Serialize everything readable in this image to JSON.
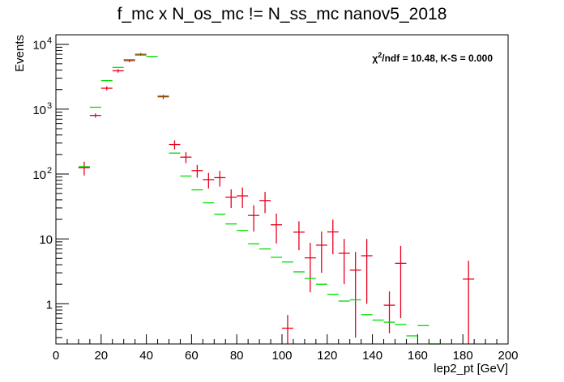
{
  "chart_data": {
    "type": "scatter",
    "title": "f_mc x N_os_mc != N_ss_mc nanov5_2018",
    "xlabel": "lep2_pt [GeV]",
    "ylabel": "Events",
    "xlim": [
      0,
      200
    ],
    "ylim": [
      0.24,
      14000
    ],
    "yscale": "log",
    "x_ticks": [
      "0",
      "20",
      "40",
      "60",
      "80",
      "100",
      "120",
      "140",
      "160",
      "180",
      "200"
    ],
    "y_ticks": [
      {
        "value": 1,
        "label": "1"
      },
      {
        "value": 10,
        "label": "10"
      },
      {
        "value": 100,
        "label": "10",
        "exp": "2"
      },
      {
        "value": 1000,
        "label": "10",
        "exp": "3"
      },
      {
        "value": 10000,
        "label": "10",
        "exp": "4"
      }
    ],
    "annotation": {
      "chi_prefix": "χ",
      "chi_sup": "2",
      "chi_rest": "/ndf = 10.48,   K-S = 0.000"
    },
    "bin_half_width": 2.5,
    "colors": {
      "red_series": "#e8001c",
      "green_series": "#00dd00"
    },
    "series": [
      {
        "color": "red",
        "points": [
          [
            12.5,
            125,
            30
          ],
          [
            17.5,
            800,
            60
          ],
          [
            22.5,
            2100,
            150
          ],
          [
            27.5,
            3900,
            250
          ],
          [
            32.5,
            5600,
            300
          ],
          [
            37.5,
            7000,
            350
          ],
          [
            47.5,
            1550,
            120
          ],
          [
            52.5,
            285,
            45
          ],
          [
            57.5,
            182,
            35
          ],
          [
            62.5,
            113,
            25
          ],
          [
            67.5,
            82,
            22
          ],
          [
            72.5,
            88,
            24
          ],
          [
            77.5,
            44,
            14
          ],
          [
            82.5,
            46,
            16
          ],
          [
            87.5,
            23,
            10
          ],
          [
            92.5,
            39,
            14
          ],
          [
            97.5,
            16.5,
            8
          ],
          [
            102.5,
            0.42,
            0.25
          ],
          [
            107.5,
            12.7,
            6
          ],
          [
            112.5,
            5.1,
            3.6
          ],
          [
            117.5,
            8.0,
            5
          ],
          [
            122.5,
            12.8,
            7
          ],
          [
            127.5,
            6.0,
            4
          ],
          [
            132.5,
            3.3,
            3.0
          ],
          [
            137.5,
            5.5,
            4.5
          ],
          [
            147.5,
            0.95,
            0.6
          ],
          [
            152.5,
            4.2,
            3.6
          ],
          [
            182.5,
            2.4,
            2.2
          ]
        ]
      },
      {
        "color": "green",
        "points": [
          [
            12.5,
            130
          ],
          [
            17.5,
            1070
          ],
          [
            22.5,
            2750
          ],
          [
            27.5,
            4400
          ],
          [
            32.5,
            5800
          ],
          [
            37.5,
            6800
          ],
          [
            42.5,
            6500
          ],
          [
            47.5,
            1600
          ],
          [
            52.5,
            210
          ],
          [
            57.5,
            93
          ],
          [
            62.5,
            57
          ],
          [
            67.5,
            36
          ],
          [
            72.5,
            24
          ],
          [
            77.5,
            17
          ],
          [
            82.5,
            13.5
          ],
          [
            87.5,
            8.4
          ],
          [
            92.5,
            7.0
          ],
          [
            97.5,
            5.2
          ],
          [
            102.5,
            4.4
          ],
          [
            107.5,
            3.1
          ],
          [
            112.5,
            2.45
          ],
          [
            117.5,
            2.0
          ],
          [
            122.5,
            1.4
          ],
          [
            127.5,
            1.1
          ],
          [
            132.5,
            1.15
          ],
          [
            137.5,
            0.68
          ],
          [
            142.5,
            0.56
          ],
          [
            147.5,
            0.52
          ],
          [
            152.5,
            0.48
          ],
          [
            157.5,
            0.32
          ],
          [
            162.5,
            0.46
          ],
          [
            167.5,
            0.24
          ]
        ]
      }
    ]
  }
}
